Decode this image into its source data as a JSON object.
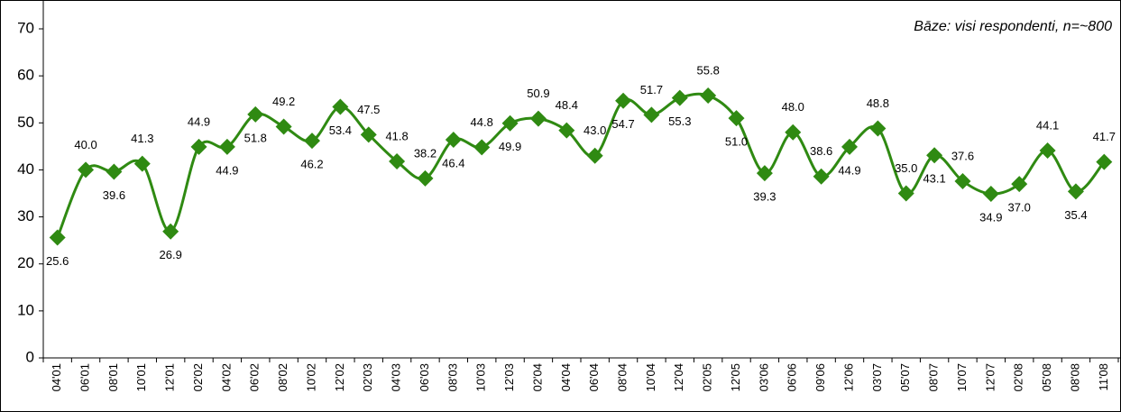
{
  "chart_data": {
    "type": "line",
    "annotation": "Bāze: visi respondenti, n=~800",
    "categories": [
      "04'01",
      "06'01",
      "08'01",
      "10'01",
      "12'01",
      "02'02",
      "04'02",
      "06'02",
      "08'02",
      "10'02",
      "12'02",
      "02'03",
      "04'03",
      "06'03",
      "08'03",
      "10'03",
      "12'03",
      "02'04",
      "04'04",
      "06'04",
      "08'04",
      "10'04",
      "12'04",
      "02'05",
      "12'05",
      "03'06",
      "06'06",
      "09'06",
      "12'06",
      "03'07",
      "05'07",
      "08'07",
      "10'07",
      "12'07",
      "02'08",
      "05'08",
      "08'08",
      "11'08"
    ],
    "series": [
      {
        "color": "#2f8a12",
        "values": [
          25.6,
          40.0,
          39.6,
          41.3,
          26.9,
          44.9,
          44.9,
          51.8,
          49.2,
          46.2,
          53.4,
          47.5,
          41.8,
          38.2,
          46.4,
          44.8,
          49.9,
          50.9,
          48.4,
          43.0,
          54.7,
          51.7,
          55.3,
          55.8,
          51.0,
          39.3,
          48.0,
          38.6,
          44.9,
          48.8,
          35.0,
          43.1,
          37.6,
          34.9,
          37.0,
          44.1,
          35.4,
          41.7
        ],
        "value_labels": [
          "25.6",
          "40.0",
          "39.6",
          "41.3",
          "26.9",
          "44.9",
          "44.9",
          "51.8",
          "49.2",
          "46.2",
          "53.4",
          "47.5",
          "41.8",
          "38.2",
          "46.4",
          "44.8",
          "49.9",
          "50.9",
          "48.4",
          "43.0",
          "54.7",
          "51.7",
          "55.3",
          "55.8",
          "51.0",
          "39.3",
          "48.0",
          "38.6",
          "44.9",
          "48.8",
          "35.0",
          "43.1",
          "37.6",
          "34.9",
          "37.0",
          "44.1",
          "35.4",
          "41.7"
        ]
      }
    ],
    "ylim": [
      0,
      70
    ],
    "yticks": [
      0,
      10,
      20,
      30,
      40,
      50,
      60,
      70
    ]
  }
}
